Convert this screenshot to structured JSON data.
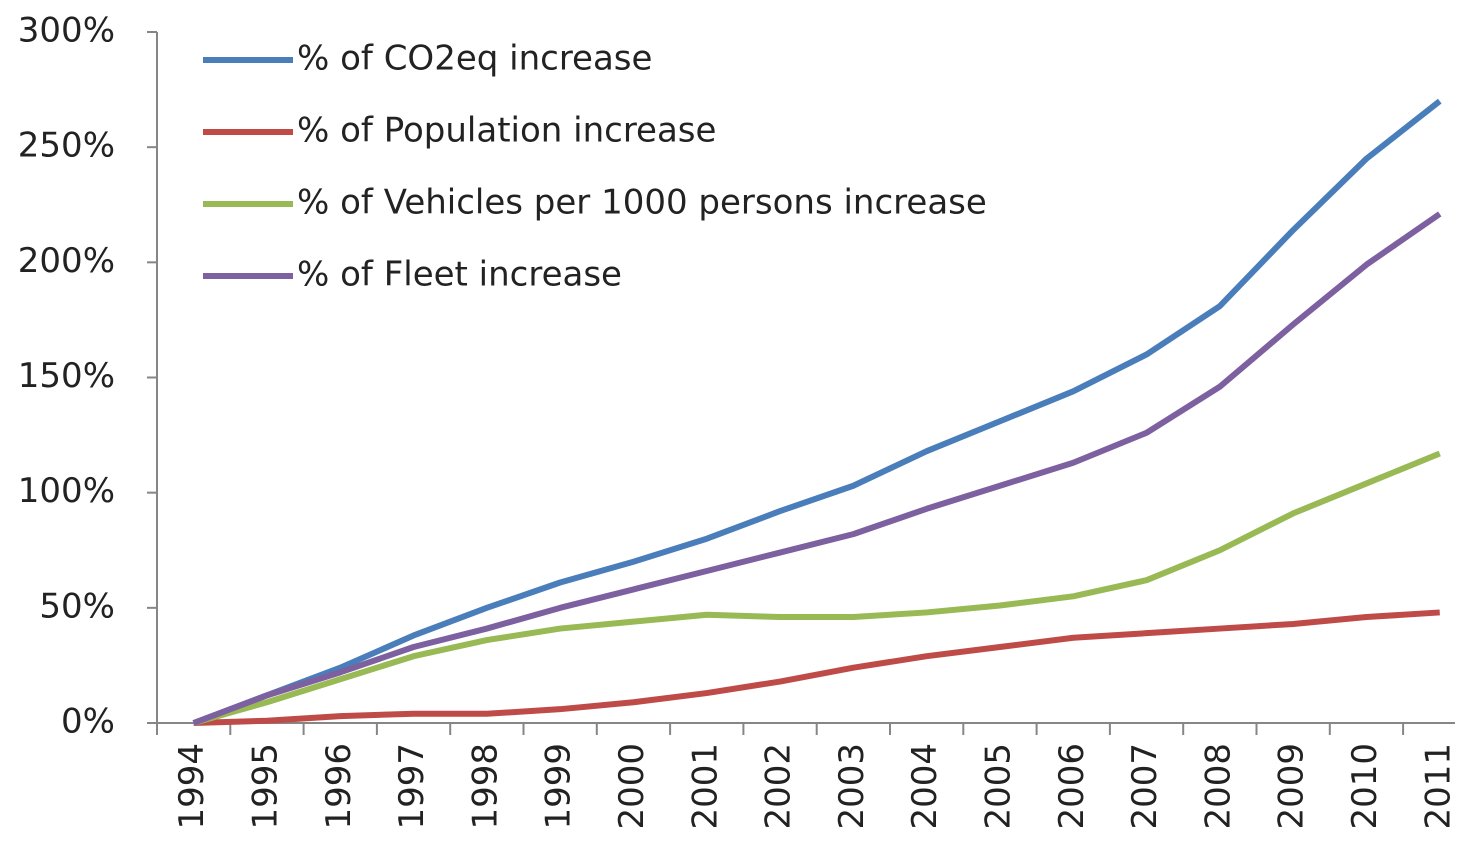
{
  "chart_data": {
    "type": "line",
    "categories": [
      "1994",
      "1995",
      "1996",
      "1997",
      "1998",
      "1999",
      "2000",
      "2001",
      "2002",
      "2003",
      "2004",
      "2005",
      "2006",
      "2007",
      "2008",
      "2009",
      "2010",
      "2011"
    ],
    "series": [
      {
        "name": "% of CO2eq increase",
        "color": "#4a7ebb",
        "values": [
          0,
          12,
          24,
          38,
          50,
          61,
          70,
          80,
          92,
          103,
          118,
          131,
          144,
          160,
          181,
          214,
          245,
          270
        ]
      },
      {
        "name": "% of Population increase",
        "color": "#be4b48",
        "values": [
          0,
          1,
          3,
          4,
          4,
          6,
          9,
          13,
          18,
          24,
          29,
          33,
          37,
          39,
          41,
          43,
          46,
          48
        ]
      },
      {
        "name": "% of Vehicles per 1000 persons increase",
        "color": "#98b954",
        "values": [
          0,
          9,
          19,
          29,
          36,
          41,
          44,
          47,
          46,
          46,
          48,
          51,
          55,
          62,
          75,
          91,
          104,
          117
        ]
      },
      {
        "name": "% of Fleet increase",
        "color": "#7d60a0",
        "values": [
          0,
          12,
          22,
          33,
          41,
          50,
          58,
          66,
          74,
          82,
          93,
          103,
          113,
          126,
          146,
          173,
          199,
          221
        ]
      }
    ],
    "ylim": [
      0,
      300
    ],
    "yticks": [
      {
        "value": 0,
        "label": "0%"
      },
      {
        "value": 50,
        "label": "50%"
      },
      {
        "value": 100,
        "label": "100%"
      },
      {
        "value": 150,
        "label": "150%"
      },
      {
        "value": 200,
        "label": "200%"
      },
      {
        "value": 250,
        "label": "250%"
      },
      {
        "value": 300,
        "label": "300%"
      }
    ],
    "legend": "upper-left"
  }
}
